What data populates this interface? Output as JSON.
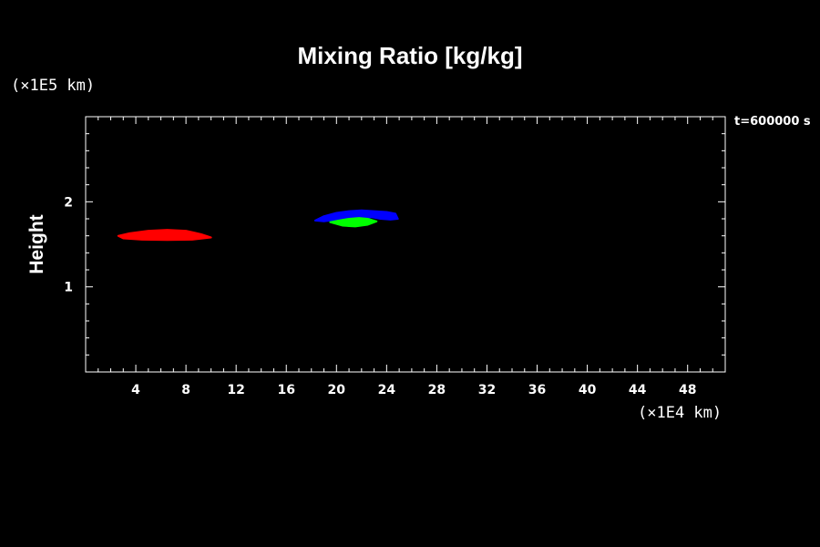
{
  "chart_data": {
    "type": "contour",
    "title": "Mixing Ratio [kg/kg]",
    "ylabel": "Height",
    "xunit": "(×1E4 km)",
    "yunit": "(×1E5 km)",
    "annotation": "t=600000 s",
    "xlim": [
      0,
      51
    ],
    "ylim": [
      0,
      3
    ],
    "xticks": [
      4,
      8,
      12,
      16,
      20,
      24,
      28,
      32,
      36,
      40,
      44,
      48
    ],
    "yticks": [
      1,
      2
    ],
    "grid": false,
    "colors": {
      "background": "#000000",
      "axes": "#ffffff"
    },
    "series": [
      {
        "color": "#ff0000",
        "outline": [
          [
            2.6,
            1.6
          ],
          [
            3.5,
            1.63
          ],
          [
            5,
            1.66
          ],
          [
            6.5,
            1.67
          ],
          [
            8,
            1.66
          ],
          [
            9.2,
            1.62
          ],
          [
            10,
            1.58
          ],
          [
            8.5,
            1.555
          ],
          [
            6.5,
            1.55
          ],
          [
            4.5,
            1.555
          ],
          [
            3,
            1.57
          ]
        ]
      },
      {
        "color": "#0000ff",
        "outline": [
          [
            18.3,
            1.78
          ],
          [
            19,
            1.83
          ],
          [
            20,
            1.87
          ],
          [
            21,
            1.89
          ],
          [
            22,
            1.9
          ],
          [
            23,
            1.89
          ],
          [
            24,
            1.88
          ],
          [
            24.7,
            1.86
          ],
          [
            24.9,
            1.8
          ],
          [
            24.3,
            1.79
          ],
          [
            23.5,
            1.8
          ],
          [
            22.8,
            1.82
          ],
          [
            22,
            1.8
          ],
          [
            21,
            1.8
          ],
          [
            20,
            1.79
          ],
          [
            19,
            1.77
          ]
        ]
      },
      {
        "color": "#00ff00",
        "outline": [
          [
            19.5,
            1.76
          ],
          [
            20.2,
            1.78
          ],
          [
            21,
            1.8
          ],
          [
            21.8,
            1.81
          ],
          [
            22.5,
            1.8
          ],
          [
            23.2,
            1.77
          ],
          [
            22.5,
            1.73
          ],
          [
            21.5,
            1.71
          ],
          [
            20.5,
            1.72
          ]
        ]
      }
    ]
  }
}
